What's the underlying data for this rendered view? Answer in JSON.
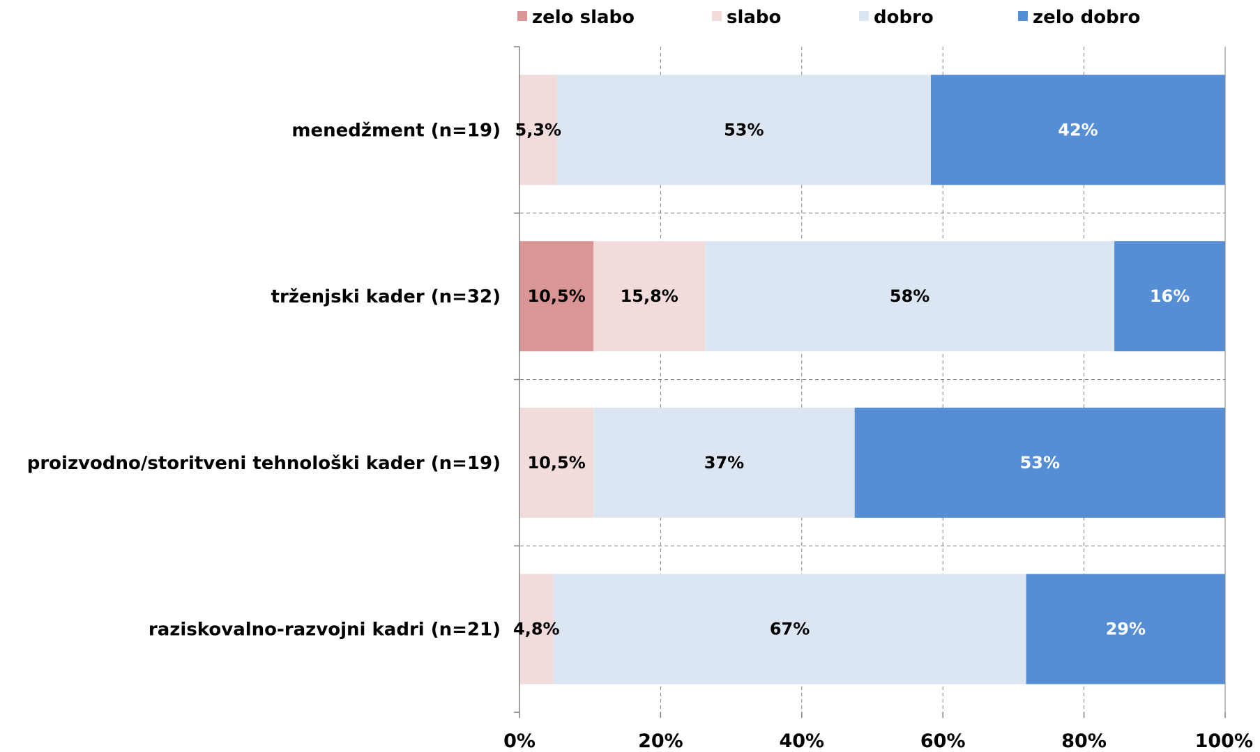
{
  "chart_data": {
    "type": "bar",
    "orientation": "horizontal",
    "stacked": "percent",
    "categories": [
      "menedžment (n=19)",
      "trženjski kader (n=32)",
      "proizvodno/storitveni tehnološki kader (n=19)",
      "raziskovalno-razvojni kadri (n=21)"
    ],
    "series": [
      {
        "name": "zelo slabo",
        "color": "#d99694",
        "values": [
          0,
          10.5,
          0,
          0
        ],
        "labels": [
          "",
          "10,5%",
          "",
          ""
        ],
        "label_color": "#000000"
      },
      {
        "name": "slabo",
        "color": "#f2dcdb",
        "values": [
          5.3,
          15.8,
          10.5,
          4.8
        ],
        "labels": [
          "5,3%",
          "15,8%",
          "10,5%",
          "4,8%"
        ],
        "label_color": "#000000"
      },
      {
        "name": "dobro",
        "color": "#dce6f2",
        "values": [
          53,
          58,
          37,
          67
        ],
        "labels": [
          "53%",
          "58%",
          "37%",
          "67%"
        ],
        "label_color": "#000000"
      },
      {
        "name": "zelo dobro",
        "color": "#558ed5",
        "values": [
          42,
          16,
          53,
          29
        ],
        "labels": [
          "42%",
          "16%",
          "53%",
          "29%"
        ],
        "label_color": "#ffffff"
      }
    ],
    "xlim": [
      0,
      100
    ],
    "xticks": [
      "0%",
      "20%",
      "40%",
      "60%",
      "80%",
      "100%"
    ],
    "grid": true,
    "legend_position": "top"
  }
}
